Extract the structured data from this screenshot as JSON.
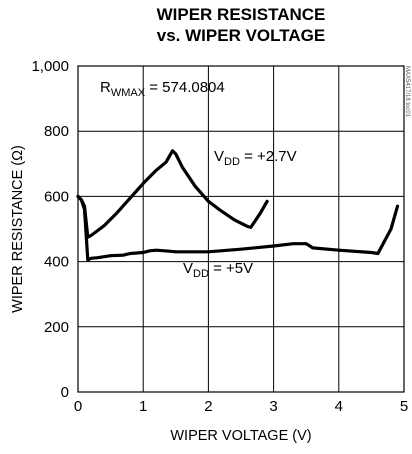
{
  "chart_data": {
    "type": "line",
    "title_line1": "WIPER RESISTANCE",
    "title_line2": "vs. WIPER VOLTAGE",
    "xlabel": "WIPER VOLTAGE (V)",
    "ylabel": "WIPER RESISTANCE (Ω)",
    "xlim": [
      0,
      5
    ],
    "ylim": [
      0,
      1000
    ],
    "x_ticks": [
      0,
      1,
      2,
      3,
      4,
      5
    ],
    "x_tick_labels": [
      "0",
      "1",
      "2",
      "3",
      "4",
      "5"
    ],
    "y_ticks": [
      0,
      200,
      400,
      600,
      800,
      1000
    ],
    "y_tick_labels": [
      "0",
      "200",
      "400",
      "600",
      "800",
      "1,000"
    ],
    "grid": true,
    "annotations": [
      {
        "id": "rwmax",
        "main": "R",
        "sub": "WMAX",
        "rest": " = 574.0804"
      },
      {
        "id": "vdd27",
        "main": "V",
        "sub": "DD",
        "rest": " = +2.7V"
      },
      {
        "id": "vdd5",
        "main": "V",
        "sub": "DD",
        "rest": " = +5V"
      }
    ],
    "side_note": "MAX5417/18 toc01",
    "series": [
      {
        "label_ref": "vdd27",
        "x": [
          0.0,
          0.05,
          0.1,
          0.15,
          0.2,
          0.3,
          0.4,
          0.6,
          0.8,
          1.0,
          1.2,
          1.35,
          1.45,
          1.5,
          1.6,
          1.8,
          2.0,
          2.2,
          2.4,
          2.6,
          2.65,
          2.8,
          2.9
        ],
        "y": [
          600,
          590,
          570,
          475,
          480,
          495,
          510,
          550,
          595,
          640,
          680,
          705,
          740,
          730,
          690,
          630,
          585,
          555,
          528,
          508,
          505,
          550,
          585
        ]
      },
      {
        "label_ref": "vdd5",
        "x": [
          0.0,
          0.05,
          0.1,
          0.15,
          0.2,
          0.3,
          0.5,
          0.7,
          0.8,
          1.0,
          1.1,
          1.2,
          1.4,
          1.5,
          1.6,
          2.0,
          2.5,
          3.0,
          3.3,
          3.5,
          3.6,
          4.0,
          4.5,
          4.6,
          4.8,
          4.9
        ],
        "y": [
          600,
          590,
          560,
          405,
          410,
          412,
          418,
          420,
          425,
          428,
          433,
          435,
          432,
          430,
          430,
          430,
          438,
          448,
          455,
          455,
          442,
          435,
          428,
          425,
          500,
          570
        ]
      }
    ]
  }
}
